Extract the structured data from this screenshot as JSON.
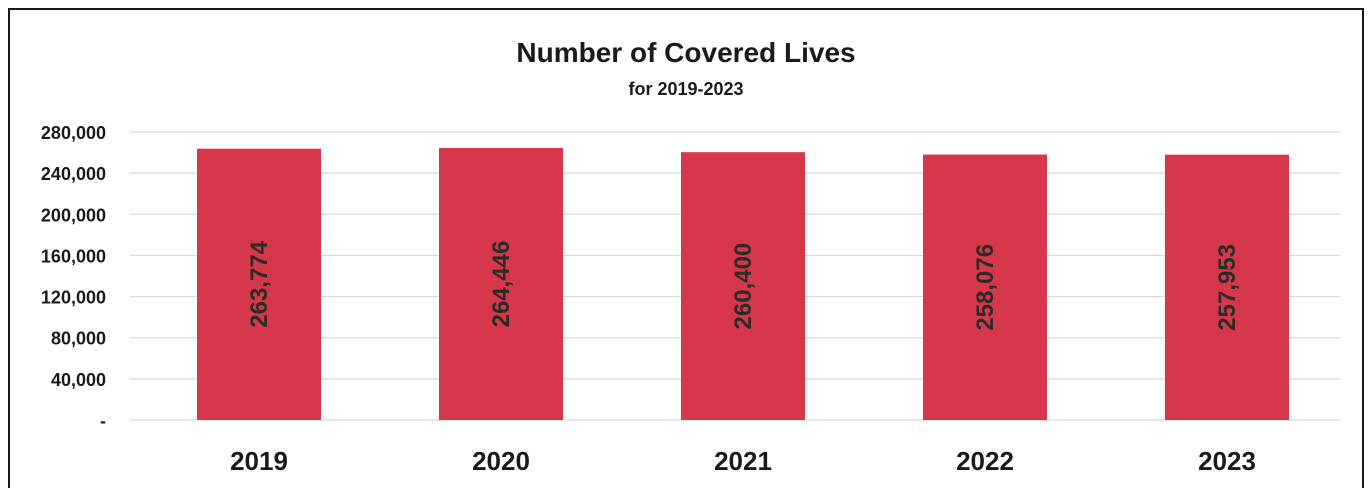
{
  "chart_data": {
    "type": "bar",
    "title": "Number of Covered Lives",
    "subtitle": "for 2019-2023",
    "categories": [
      "2019",
      "2020",
      "2021",
      "2022",
      "2023"
    ],
    "values": [
      263774,
      264446,
      260400,
      258076,
      257953
    ],
    "value_labels": [
      "263,774",
      "264,446",
      "260,400",
      "258,076",
      "257,953"
    ],
    "ylim": [
      0,
      280000
    ],
    "yticks": [
      0,
      40000,
      80000,
      120000,
      160000,
      200000,
      240000,
      280000
    ],
    "ytick_labels": [
      "-",
      "40,000",
      "80,000",
      "120,000",
      "160,000",
      "200,000",
      "240,000",
      "280,000"
    ],
    "grid": true,
    "legend": "none",
    "bar_color": "#d6374a",
    "xlabel": "",
    "ylabel": ""
  }
}
